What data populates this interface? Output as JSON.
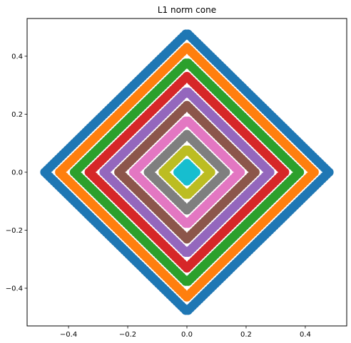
{
  "chart_data": {
    "type": "scatter",
    "title": "L1 norm cone",
    "xlabel": "",
    "ylabel": "",
    "xlim": [
      -0.54,
      0.54
    ],
    "ylim": [
      -0.53,
      0.53
    ],
    "xticks": [
      -0.4,
      -0.2,
      0.0,
      0.2,
      0.4
    ],
    "xtick_labels": [
      "−0.4",
      "−0.2",
      "0.0",
      "0.2",
      "0.4"
    ],
    "yticks": [
      -0.4,
      -0.2,
      0.0,
      0.2,
      0.4
    ],
    "ytick_labels": [
      "−0.4",
      "−0.2",
      "0.0",
      "0.2",
      "0.4"
    ],
    "grid": false,
    "legend": false,
    "series": [
      {
        "l1_radius": 0.48,
        "color": "#1f77b4"
      },
      {
        "l1_radius": 0.43,
        "color": "#ff7f0e"
      },
      {
        "l1_radius": 0.38,
        "color": "#2ca02c"
      },
      {
        "l1_radius": 0.33,
        "color": "#d62728"
      },
      {
        "l1_radius": 0.28,
        "color": "#9467bd"
      },
      {
        "l1_radius": 0.23,
        "color": "#8c564b"
      },
      {
        "l1_radius": 0.18,
        "color": "#e377c2"
      },
      {
        "l1_radius": 0.13,
        "color": "#7f7f7f"
      },
      {
        "l1_radius": 0.08,
        "color": "#bcbd22"
      },
      {
        "l1_radius": 0.03,
        "color": "#17becf"
      }
    ]
  }
}
